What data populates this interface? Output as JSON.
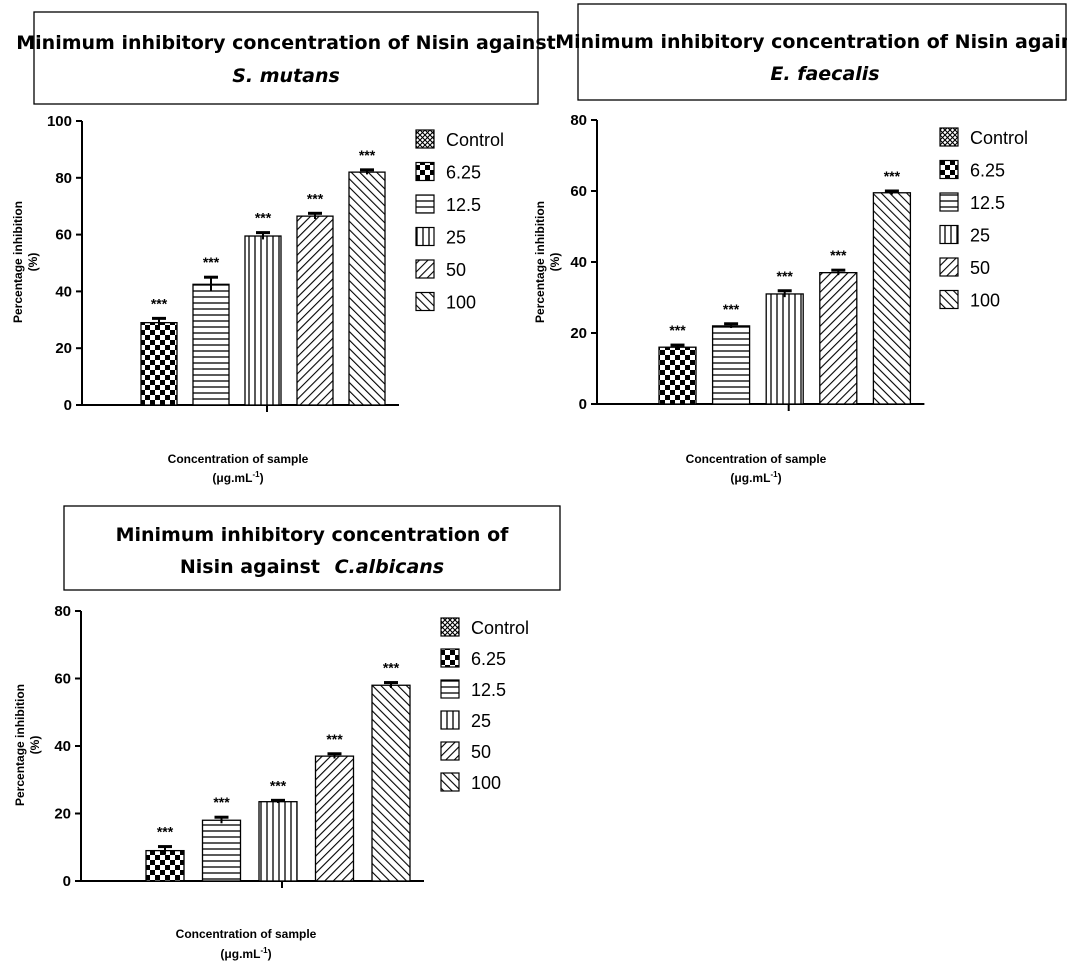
{
  "colors": {
    "ink": "#000000",
    "background": "#ffffff"
  },
  "chart_data": [
    {
      "type": "bar",
      "title": "Minimum inhibitory concentration of Nisin against",
      "title_line2": "against",
      "title_organism": "S. mutans",
      "xlabel": "Concentration of sample",
      "xlabel_unit": "(μg.mL",
      "xlabel_exp": "-1",
      "xlabel_close": ")",
      "ylabel": "Percentage inhibition",
      "ylabel_unit": "(%)",
      "ylim": [
        0,
        100
      ],
      "yticks": [
        0,
        20,
        40,
        60,
        80,
        100
      ],
      "grid": false,
      "legend_position": "right",
      "categories": [
        "Control",
        "6.25",
        "12.5",
        "25",
        "50",
        "100"
      ],
      "patterns": [
        "crosshatch",
        "checker",
        "hlines",
        "vlines",
        "diag-right",
        "diag-left"
      ],
      "values": [
        0,
        29,
        42.5,
        59.5,
        66.5,
        82
      ],
      "errors": [
        0,
        1.5,
        2.5,
        1.2,
        1.0,
        0.8
      ],
      "significance": [
        "",
        "***",
        "***",
        "***",
        "***",
        "***"
      ]
    },
    {
      "type": "bar",
      "title": "Minimum inhibitory concentration of Nisin against",
      "title_line2": "against",
      "title_organism": "E. faecalis",
      "xlabel": "Concentration of sample",
      "xlabel_unit": "(μg.mL",
      "xlabel_exp": "-1",
      "xlabel_close": ")",
      "ylabel": "Percentage inhibition",
      "ylabel_unit": "(%)",
      "ylim": [
        0,
        80
      ],
      "yticks": [
        0,
        20,
        40,
        60,
        80
      ],
      "grid": false,
      "legend_position": "right",
      "categories": [
        "Control",
        "6.25",
        "12.5",
        "25",
        "50",
        "100"
      ],
      "patterns": [
        "crosshatch",
        "checker",
        "hlines",
        "vlines",
        "diag-right",
        "diag-left"
      ],
      "values": [
        0,
        16,
        22,
        31,
        37,
        59.5
      ],
      "errors": [
        0,
        0.6,
        0.6,
        0.9,
        0.7,
        0.5
      ],
      "significance": [
        "",
        "***",
        "***",
        "***",
        "***",
        "***"
      ]
    },
    {
      "type": "bar",
      "title": "Minimum inhibitory concentration of Nisin against",
      "title_line1": "Minimum inhibitory concentration of",
      "title_line2": "Nisin against",
      "title_organism": "C.albicans",
      "xlabel": "Concentration of sample",
      "xlabel_unit": "(μg.mL",
      "xlabel_exp": "-1",
      "xlabel_close": ")",
      "ylabel": "Percentage inhibition",
      "ylabel_unit": "(%)",
      "ylim": [
        0,
        80
      ],
      "yticks": [
        0,
        20,
        40,
        60,
        80
      ],
      "grid": false,
      "legend_position": "right",
      "categories": [
        "Control",
        "6.25",
        "12.5",
        "25",
        "50",
        "100"
      ],
      "patterns": [
        "crosshatch",
        "checker",
        "hlines",
        "vlines",
        "diag-right",
        "diag-left"
      ],
      "values": [
        0,
        9,
        18,
        23.5,
        37,
        58
      ],
      "errors": [
        0,
        1.2,
        0.9,
        0.4,
        0.7,
        0.8
      ],
      "significance": [
        "",
        "***",
        "***",
        "***",
        "***",
        "***"
      ]
    }
  ]
}
